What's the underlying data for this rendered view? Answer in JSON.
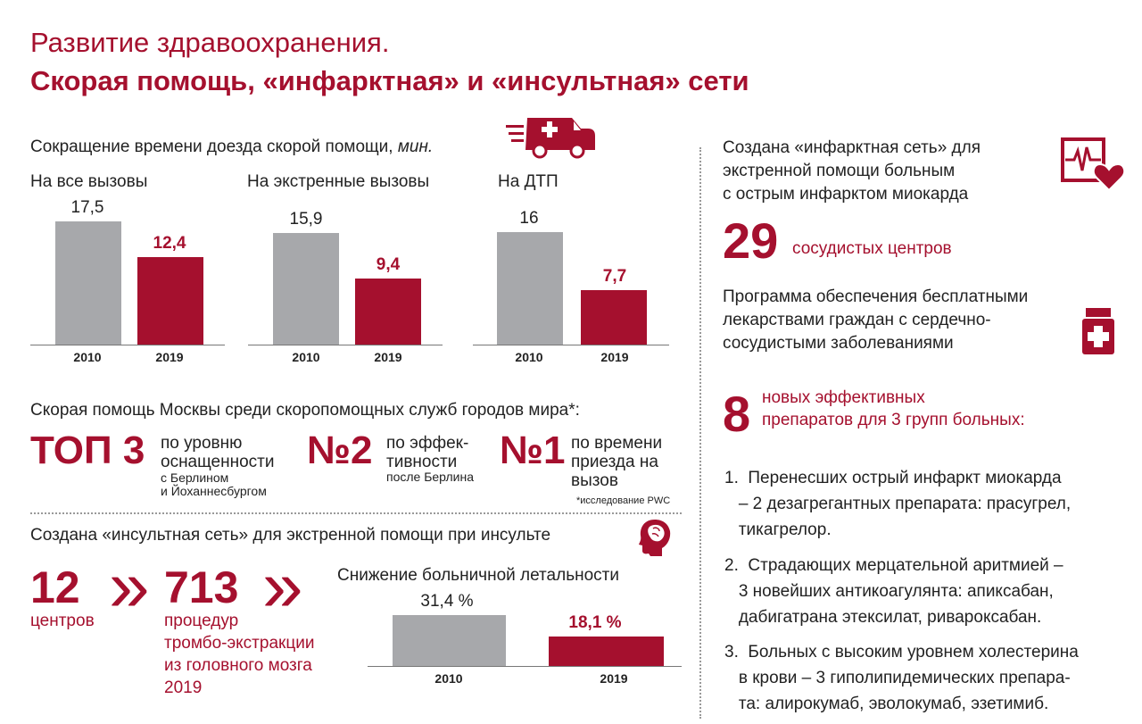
{
  "header": {
    "title": "Развитие здравоохранения.",
    "subtitle": "Скорая помощь, «инфарктная» и «инсультная» сети"
  },
  "ambulance": {
    "heading": "Сокращение времени доезда скорой помощи,",
    "unit": "мин.",
    "icon": "ambulance-icon",
    "charts": [
      {
        "label": "На все вызовы",
        "years": [
          "2010",
          "2019"
        ],
        "values": [
          17.5,
          12.4
        ],
        "value_labels": [
          "17,5",
          "12,4"
        ]
      },
      {
        "label": "На экстренные вызовы",
        "years": [
          "2010",
          "2019"
        ],
        "values": [
          15.9,
          9.4
        ],
        "value_labels": [
          "15,9",
          "9,4"
        ]
      },
      {
        "label": "На ДТП",
        "years": [
          "2010",
          "2019"
        ],
        "values": [
          16,
          7.7
        ],
        "value_labels": [
          "16",
          "7,7"
        ]
      }
    ]
  },
  "rating": {
    "heading": "Скорая помощь Москвы среди скоропомощных служб городов мира*:",
    "top_big": "ТОП 3",
    "top_l1": "по уровню",
    "top_l2": "оснащенности",
    "top_s1": "с Берлином",
    "top_s2": "и Йоханнесбургом",
    "n2_big": "№2",
    "n2_l1": "по эффек-",
    "n2_l2": "тивности",
    "n2_s1": "после Берлина",
    "n1_big": "№1",
    "n1_l1": "по времени",
    "n1_l2": "приезда на",
    "n1_l3": "вызов",
    "footnote": "*исследование PWC"
  },
  "stroke": {
    "heading": "Создана «инсультная сеть» для экстренной помощи при инсульте",
    "icon": "head-brain-icon",
    "centers_num": "12",
    "centers_lbl": "центров",
    "proc_num": "713",
    "proc_l1": "процедур",
    "proc_l2": "тромбо-экстракции",
    "proc_l3": "из головного мозга",
    "proc_l4": "2019",
    "chevron": "»"
  },
  "mortality": {
    "heading": "Снижение больничной летальности",
    "years": [
      "2010",
      "2019"
    ],
    "values": [
      31.4,
      18.1
    ],
    "value_labels": [
      "31,4 %",
      "18,1 %"
    ]
  },
  "infarct": {
    "l1": "Создана «инфарктная сеть» для",
    "l2": "экстренной помощи больным",
    "l3": "с острым инфарктом миокарда",
    "icon": "heart-monitor-icon",
    "num": "29",
    "num_lbl": "сосудистых  центров"
  },
  "drugs": {
    "l1": "Программа обеспечения бесплатными",
    "l2": "лекарствами граждан с сердечно-",
    "l3": "сосудистыми заболеваниями",
    "icon": "medicine-bottle-icon",
    "num": "8",
    "num_l1": "новых эффективных",
    "num_l2": "препаратов для 3 групп больных:",
    "list": [
      {
        "l1": "1.  Перенесших острый инфаркт миокарда",
        "l2": "   – 2 дезагрегантных препарата: прасугрел,",
        "l3": "   тикагрелор."
      },
      {
        "l1": "2.  Страдающих мерцательной аритмией –",
        "l2": "   3 новейших антикоагулянта: апиксабан,",
        "l3": "   дабигатрана этексилат, ривароксабан."
      },
      {
        "l1": "3.  Больных с высоким уровнем холестерина",
        "l2": "   в крови – 3 гиполипидемических препара-",
        "l3": "   та: алирокумаб, эволокумаб, эзетимиб."
      }
    ]
  },
  "chart_data": [
    {
      "type": "bar",
      "title": "На все вызовы",
      "categories": [
        "2010",
        "2019"
      ],
      "values": [
        17.5,
        12.4
      ]
    },
    {
      "type": "bar",
      "title": "На экстренные вызовы",
      "categories": [
        "2010",
        "2019"
      ],
      "values": [
        15.9,
        9.4
      ]
    },
    {
      "type": "bar",
      "title": "На ДТП",
      "categories": [
        "2010",
        "2019"
      ],
      "values": [
        16,
        7.7
      ]
    },
    {
      "type": "bar",
      "title": "Снижение больничной летальности",
      "categories": [
        "2010",
        "2019"
      ],
      "values": [
        31.4,
        18.1
      ]
    }
  ],
  "colors": {
    "accent": "#a5102e",
    "gray_bar": "#a7a8ab"
  }
}
